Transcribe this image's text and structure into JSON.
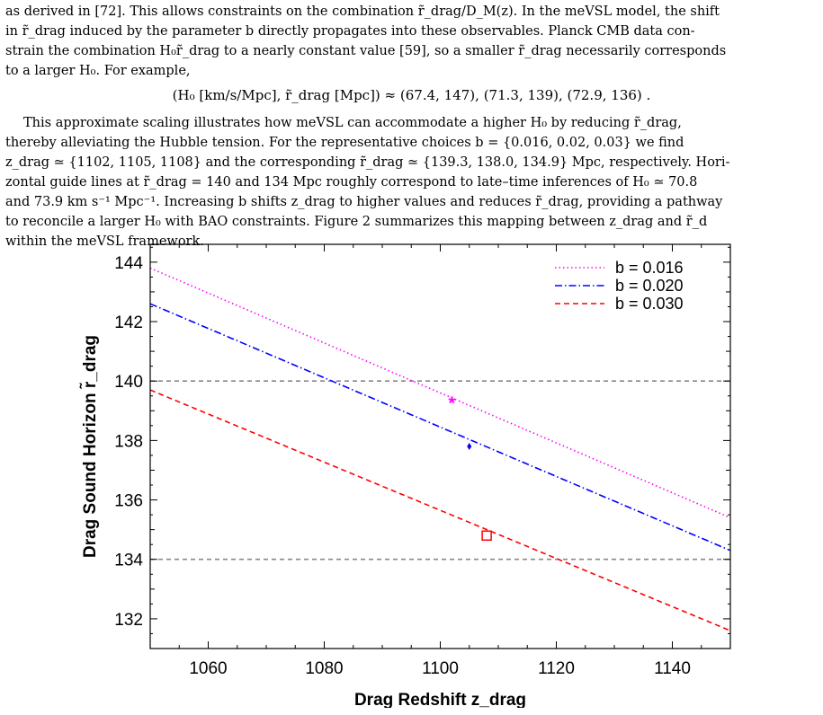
{
  "paragraph1": {
    "lines": [
      "as derived in [72]. This allows constraints on the combination r̃_drag/D_M(z). In the meVSL model, the shift",
      "in r̃_drag induced by the parameter b directly propagates into these observables. Planck CMB data con-",
      "strain the combination H₀r̃_drag to a nearly constant value [59], so a smaller r̃_drag necessarily corresponds",
      "to a larger H₀. For example,"
    ]
  },
  "equation": "(H₀ [km/s/Mpc], r̃_drag [Mpc]) ≈ (67.4, 147),    (71.3, 139),    (72.9, 136) .",
  "paragraph2": {
    "lines": [
      "This approximate scaling illustrates how meVSL can accommodate a higher H₀ by reducing r̃_drag,",
      "thereby alleviating the Hubble tension. For the representative choices b = {0.016, 0.02, 0.03} we find",
      "z_drag ≃ {1102, 1105, 1108} and the corresponding r̃_drag ≃ {139.3, 138.0, 134.9} Mpc, respectively. Hori-",
      "zontal guide lines at r̃_drag = 140 and 134 Mpc roughly correspond to late–time inferences of H₀ ≃ 70.8",
      "and 73.9 km s⁻¹ Mpc⁻¹. Increasing b shifts z_drag to higher values and reduces r̃_drag, providing a pathway",
      "to reconcile a larger H₀ with BAO constraints. Figure 2 summarizes this mapping between z_drag and r̃_d",
      "within the meVSL framework."
    ]
  },
  "chart_data": {
    "type": "line",
    "xlabel": "Drag Redshift z_drag",
    "ylabel": "Drag Sound Horizon r̃_drag",
    "xlim": [
      1050,
      1150
    ],
    "ylim": [
      131,
      144.6
    ],
    "xticks": [
      1060,
      1080,
      1100,
      1120,
      1140
    ],
    "yticks": [
      132,
      134,
      136,
      138,
      140,
      142,
      144
    ],
    "grid": false,
    "legend_position": "top-right",
    "series": [
      {
        "name": "b = 0.016",
        "color": "#ff00ff",
        "dash": "dotted",
        "x": [
          1050,
          1150
        ],
        "y": [
          143.8,
          135.4
        ]
      },
      {
        "name": "b = 0.020",
        "color": "#0000ff",
        "dash": "dashdot",
        "x": [
          1050,
          1150
        ],
        "y": [
          142.6,
          134.3
        ]
      },
      {
        "name": "b = 0.030",
        "color": "#ff0000",
        "dash": "dashed",
        "x": [
          1050,
          1150
        ],
        "y": [
          139.7,
          131.6
        ]
      }
    ],
    "markers": [
      {
        "label": "star",
        "symbol": "*",
        "color": "#ff00ff",
        "x": 1102,
        "y": 139.3
      },
      {
        "label": "diamond",
        "symbol": "◆",
        "color": "#0000ff",
        "x": 1105,
        "y": 137.8
      },
      {
        "label": "square",
        "symbol": "□",
        "color": "#ff0000",
        "x": 1108,
        "y": 134.8
      }
    ],
    "guide_lines": [
      140,
      134
    ]
  }
}
